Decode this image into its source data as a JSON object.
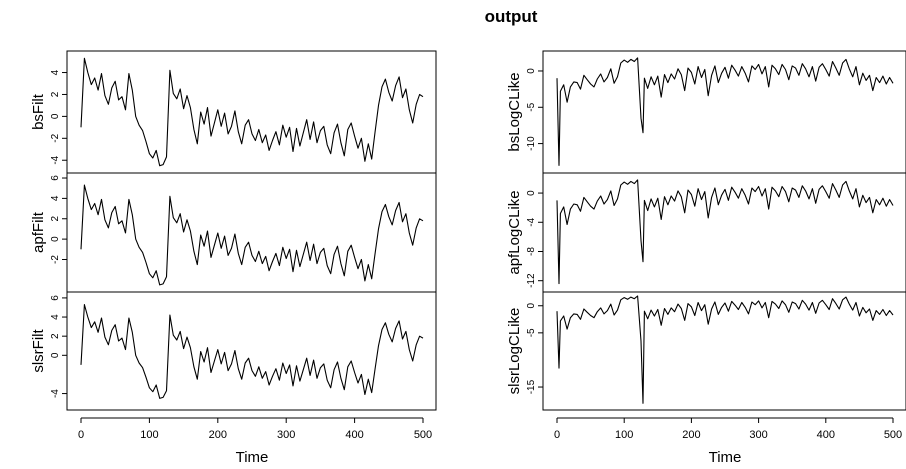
{
  "title": "output",
  "chart_data": [
    {
      "type": "line",
      "column": "left",
      "xlabel": "Time",
      "xlim": [
        0,
        500
      ],
      "xticks": [
        0,
        100,
        200,
        300,
        400,
        500
      ],
      "panels": [
        {
          "ylabel": "bsFilt",
          "ylim": [
            -4.8,
            5.6
          ],
          "yticks": [
            -4,
            -2,
            0,
            2,
            4
          ]
        },
        {
          "ylabel": "apfFilt",
          "ylim": [
            -4.8,
            6.1
          ],
          "yticks": [
            -2,
            0,
            2,
            4,
            6
          ]
        },
        {
          "ylabel": "slsrFilt",
          "ylim": [
            -5.3,
            6.2
          ],
          "yticks": [
            -4,
            0,
            2,
            4,
            6
          ]
        }
      ],
      "series_x": [
        0,
        5,
        10,
        15,
        20,
        25,
        30,
        35,
        40,
        45,
        50,
        55,
        60,
        65,
        70,
        75,
        80,
        85,
        90,
        95,
        100,
        105,
        110,
        115,
        120,
        125,
        130,
        135,
        140,
        145,
        150,
        155,
        160,
        165,
        170,
        175,
        180,
        185,
        190,
        195,
        200,
        205,
        210,
        215,
        220,
        225,
        230,
        235,
        240,
        245,
        250,
        255,
        260,
        265,
        270,
        275,
        280,
        285,
        290,
        295,
        300,
        305,
        310,
        315,
        320,
        325,
        330,
        335,
        340,
        345,
        350,
        355,
        360,
        365,
        370,
        375,
        380,
        385,
        390,
        395,
        400,
        405,
        410,
        415,
        420,
        425,
        430,
        435,
        440,
        445,
        450,
        455,
        460,
        465,
        470,
        475,
        480,
        485,
        490,
        495,
        500
      ],
      "series_y": [
        -1.0,
        5.3,
        4.0,
        2.9,
        3.5,
        2.4,
        3.9,
        1.9,
        1.1,
        2.6,
        3.2,
        1.5,
        1.8,
        0.6,
        3.9,
        2.4,
        0.0,
        -0.8,
        -1.3,
        -2.3,
        -3.4,
        -3.8,
        -3.1,
        -4.5,
        -4.4,
        -3.7,
        4.2,
        2.1,
        1.6,
        2.5,
        0.7,
        1.9,
        0.8,
        -1.2,
        -2.5,
        0.4,
        -0.7,
        0.8,
        -1.8,
        -0.6,
        0.6,
        -0.9,
        0.3,
        -1.6,
        -0.9,
        0.5,
        -1.4,
        -2.5,
        -0.8,
        -0.3,
        -1.6,
        -2.2,
        -1.2,
        -2.4,
        -1.7,
        -3.1,
        -2.2,
        -1.4,
        -2.6,
        -0.8,
        -1.9,
        -1.0,
        -3.2,
        -1.1,
        -2.7,
        -1.5,
        -0.3,
        -2.1,
        -0.5,
        -2.4,
        -1.3,
        -0.9,
        -2.6,
        -3.4,
        -1.5,
        -0.7,
        -2.4,
        -3.6,
        -1.2,
        -0.6,
        -1.8,
        -2.9,
        -2.0,
        -4.1,
        -2.5,
        -3.9,
        -1.4,
        1.0,
        2.7,
        3.4,
        2.2,
        1.4,
        2.8,
        3.6,
        1.7,
        2.5,
        0.6,
        -0.6,
        1.1,
        2.0,
        1.8
      ]
    },
    {
      "type": "line",
      "column": "right",
      "xlabel": "Time",
      "xlim": [
        0,
        500
      ],
      "xticks": [
        0,
        100,
        200,
        300,
        400,
        500
      ],
      "panels": [
        {
          "ylabel": "bsLogCLike",
          "ylim": [
            -13.5,
            2.2
          ],
          "yticks": [
            -10,
            -5,
            0
          ]
        },
        {
          "ylabel": "apfLogCLike",
          "ylim": [
            -13.0,
            2.2
          ],
          "yticks": [
            -12,
            -8,
            -4,
            0
          ]
        },
        {
          "ylabel": "slsrLogCLike",
          "ylim": [
            -18.5,
            1.8
          ],
          "yticks": [
            -15,
            -5,
            0
          ]
        }
      ],
      "series_x": [
        0,
        5,
        10,
        15,
        20,
        25,
        30,
        35,
        40,
        45,
        50,
        55,
        60,
        65,
        70,
        75,
        80,
        85,
        90,
        95,
        100,
        105,
        110,
        115,
        120,
        125,
        130,
        135,
        140,
        145,
        150,
        155,
        160,
        165,
        170,
        175,
        180,
        185,
        190,
        195,
        200,
        205,
        210,
        215,
        220,
        225,
        230,
        235,
        240,
        245,
        250,
        255,
        260,
        265,
        270,
        275,
        280,
        285,
        290,
        295,
        300,
        305,
        310,
        315,
        320,
        325,
        330,
        335,
        340,
        345,
        350,
        355,
        360,
        365,
        370,
        375,
        380,
        385,
        390,
        395,
        400,
        405,
        410,
        415,
        420,
        425,
        430,
        435,
        440,
        445,
        450,
        455,
        460,
        465,
        470,
        475,
        480,
        485,
        490,
        495,
        500
      ],
      "series_y": [
        -1.0,
        -2.8,
        -1.9,
        -4.3,
        -2.2,
        -1.5,
        -1.6,
        -2.5,
        -0.6,
        -1.2,
        -1.8,
        -2.2,
        -1.1,
        -0.4,
        -1.5,
        -0.9,
        0.3,
        -1.7,
        -0.8,
        1.1,
        1.5,
        1.2,
        1.6,
        1.3,
        1.8,
        -6.5,
        -1.0,
        -2.4,
        -0.8,
        -1.9,
        -0.7,
        -3.6,
        -0.5,
        -1.6,
        -0.4,
        -1.1,
        0.3,
        -0.5,
        -2.7,
        0.4,
        -0.2,
        -1.8,
        0.6,
        -0.9,
        0.2,
        -3.4,
        -0.6,
        0.7,
        -1.6,
        -0.3,
        0.5,
        -1.0,
        0.8,
        0.1,
        -0.7,
        0.6,
        -0.3,
        -1.5,
        0.7,
        0.2,
        0.9,
        -0.4,
        0.6,
        -2.2,
        0.8,
        0.3,
        -0.5,
        0.9,
        0.2,
        -1.2,
        0.7,
        0.4,
        -0.6,
        1.0,
        0.3,
        -0.8,
        0.6,
        -1.4,
        0.5,
        1.0,
        0.2,
        -0.7,
        1.3,
        0.4,
        -0.6,
        1.1,
        1.6,
        0.3,
        -0.8,
        0.6,
        -1.9,
        -0.3,
        -1.3,
        -0.6,
        -2.7,
        -0.9,
        -1.6,
        -0.7,
        -1.8,
        -0.9,
        -1.7
      ],
      "spikes": [
        {
          "x": 3,
          "y": [
            -13.0,
            -12.4,
            -11.5
          ]
        },
        {
          "x": 128,
          "y": [
            -8.5,
            -9.4,
            -18.0
          ]
        }
      ]
    }
  ]
}
